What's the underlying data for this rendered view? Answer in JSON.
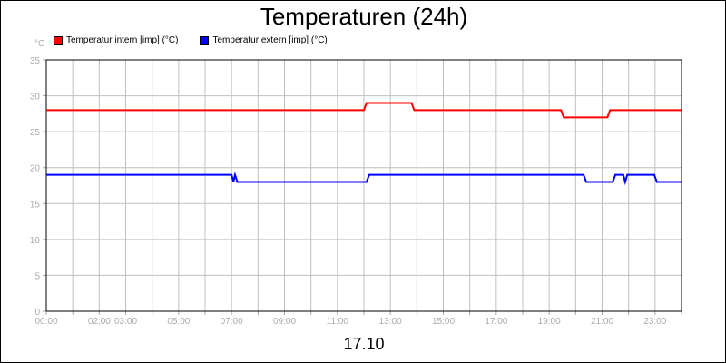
{
  "chart_data": {
    "type": "line",
    "title": "Temperaturen (24h)",
    "xlabel": "17.10",
    "ylabel": "°C",
    "ylim": [
      0,
      35
    ],
    "yticks": [
      "0",
      "5",
      "10",
      "15",
      "20",
      "25",
      "30",
      "35"
    ],
    "xlim_hours": [
      0,
      24
    ],
    "xticks": [
      {
        "label": "00:00",
        "h": 0
      },
      {
        "label": "02:00",
        "h": 2
      },
      {
        "label": "03:00",
        "h": 3
      },
      {
        "label": "05:00",
        "h": 5
      },
      {
        "label": "07:00",
        "h": 7
      },
      {
        "label": "09:00",
        "h": 9
      },
      {
        "label": "11:00",
        "h": 11
      },
      {
        "label": "13:00",
        "h": 13
      },
      {
        "label": "15:00",
        "h": 15
      },
      {
        "label": "17:00",
        "h": 17
      },
      {
        "label": "19:00",
        "h": 19
      },
      {
        "label": "21:00",
        "h": 21
      },
      {
        "label": "23:00",
        "h": 23
      }
    ],
    "grid": true,
    "legend_position": "top-left",
    "series": [
      {
        "name": "Temperatur intern [imp] (°C)",
        "color": "#ff0000",
        "points": [
          [
            0,
            28
          ],
          [
            12.0,
            28
          ],
          [
            12.1,
            29
          ],
          [
            13.8,
            29
          ],
          [
            13.9,
            28
          ],
          [
            19.45,
            28
          ],
          [
            19.55,
            27
          ],
          [
            21.2,
            27
          ],
          [
            21.3,
            28
          ],
          [
            24,
            28
          ]
        ]
      },
      {
        "name": "Temperatur extern [imp] (°C)",
        "color": "#0000ff",
        "points": [
          [
            0,
            19
          ],
          [
            7.0,
            19
          ],
          [
            7.07,
            18
          ],
          [
            7.13,
            19
          ],
          [
            7.22,
            18
          ],
          [
            12.1,
            18
          ],
          [
            12.2,
            19
          ],
          [
            20.3,
            19
          ],
          [
            20.4,
            18
          ],
          [
            21.4,
            18
          ],
          [
            21.5,
            19
          ],
          [
            21.8,
            19
          ],
          [
            21.87,
            18
          ],
          [
            21.95,
            19
          ],
          [
            22.97,
            19
          ],
          [
            23.07,
            18
          ],
          [
            24,
            18
          ]
        ]
      }
    ]
  }
}
